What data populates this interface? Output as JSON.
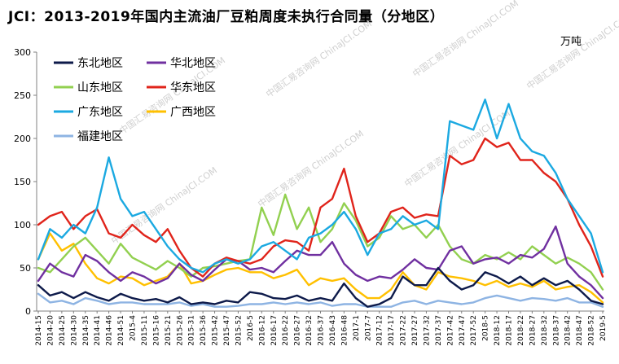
{
  "chart_data": {
    "type": "line",
    "title": "JCI：2013-2019年国内主流油厂豆粕周度未执行合同量（分地区）",
    "unit": "万吨",
    "ylim": [
      0,
      300
    ],
    "yticks": [
      0,
      50,
      100,
      150,
      200,
      250,
      300
    ],
    "grid": false,
    "legend_position": "top-left",
    "x_categories": [
      "2014-15",
      "2014-20",
      "2014-25",
      "2014-30",
      "2014-35",
      "2014-41",
      "2014-46",
      "2014-51",
      "2015-4",
      "2015-11",
      "2015-16",
      "2015-21",
      "2015-26",
      "2015-31",
      "2015-36",
      "2015-42",
      "2015-47",
      "2015-52",
      "2016-5",
      "2016-12",
      "2016-17",
      "2016-22",
      "2016-27",
      "2016-32",
      "2016-37",
      "2016-43",
      "2016-48",
      "2017-1",
      "2017-7",
      "2017-12",
      "2017-17",
      "2017-22",
      "2017-27",
      "2017-32",
      "2017-37",
      "2017-42",
      "2017-47",
      "2017-52",
      "2018-5",
      "2018-12",
      "2018-17",
      "2018-22",
      "2018-27",
      "2018-32",
      "2018-37",
      "2018-42",
      "2018-47",
      "2018-52",
      "2019-5"
    ],
    "series": [
      {
        "name": "东北地区",
        "color": "#0d1a4a",
        "values": [
          30,
          18,
          22,
          15,
          22,
          16,
          12,
          20,
          15,
          12,
          14,
          10,
          16,
          8,
          10,
          8,
          12,
          10,
          22,
          20,
          15,
          14,
          18,
          12,
          15,
          12,
          32,
          15,
          5,
          8,
          15,
          40,
          30,
          30,
          50,
          35,
          25,
          30,
          45,
          40,
          32,
          40,
          30,
          38,
          30,
          35,
          25,
          12,
          8
        ]
      },
      {
        "name": "华北地区",
        "color": "#7030a0",
        "values": [
          35,
          55,
          45,
          40,
          65,
          58,
          45,
          35,
          45,
          40,
          32,
          38,
          55,
          42,
          35,
          48,
          60,
          58,
          48,
          50,
          45,
          58,
          70,
          65,
          65,
          80,
          55,
          42,
          35,
          40,
          38,
          48,
          60,
          50,
          48,
          70,
          75,
          55,
          60,
          62,
          55,
          65,
          62,
          72,
          98,
          55,
          40,
          30,
          15
        ]
      },
      {
        "name": "山东地区",
        "color": "#92d050",
        "values": [
          50,
          45,
          60,
          75,
          85,
          70,
          55,
          78,
          62,
          55,
          48,
          58,
          50,
          40,
          50,
          52,
          55,
          58,
          60,
          120,
          88,
          135,
          95,
          120,
          80,
          95,
          125,
          105,
          75,
          85,
          110,
          95,
          100,
          85,
          100,
          75,
          60,
          55,
          65,
          60,
          68,
          60,
          75,
          65,
          55,
          62,
          55,
          45,
          25
        ]
      },
      {
        "name": "华东地区",
        "color": "#e0241b",
        "values": [
          100,
          110,
          115,
          95,
          110,
          118,
          90,
          85,
          100,
          88,
          80,
          95,
          70,
          50,
          40,
          55,
          62,
          58,
          55,
          60,
          75,
          82,
          80,
          70,
          120,
          130,
          165,
          110,
          80,
          90,
          115,
          120,
          108,
          112,
          110,
          180,
          170,
          175,
          200,
          190,
          195,
          175,
          175,
          160,
          150,
          130,
          100,
          75,
          40
        ]
      },
      {
        "name": "广东地区",
        "color": "#1ba9e1",
        "values": [
          60,
          95,
          85,
          100,
          90,
          120,
          178,
          130,
          110,
          115,
          95,
          75,
          60,
          50,
          45,
          55,
          60,
          55,
          60,
          75,
          80,
          70,
          60,
          85,
          90,
          100,
          115,
          95,
          65,
          90,
          95,
          110,
          100,
          105,
          95,
          220,
          215,
          210,
          245,
          200,
          240,
          200,
          185,
          180,
          160,
          130,
          110,
          90,
          45
        ]
      },
      {
        "name": "广西地区",
        "color": "#ffc000",
        "values": [
          60,
          90,
          70,
          78,
          55,
          38,
          32,
          40,
          38,
          30,
          35,
          40,
          55,
          32,
          35,
          42,
          48,
          50,
          45,
          45,
          38,
          42,
          48,
          30,
          38,
          35,
          38,
          25,
          15,
          15,
          25,
          45,
          30,
          25,
          45,
          40,
          38,
          35,
          30,
          35,
          28,
          32,
          28,
          35,
          25,
          28,
          30,
          22,
          10
        ]
      },
      {
        "name": "福建地区",
        "color": "#8eb4e3",
        "values": [
          20,
          10,
          12,
          8,
          15,
          12,
          8,
          10,
          10,
          8,
          8,
          8,
          10,
          6,
          8,
          5,
          5,
          6,
          8,
          8,
          10,
          8,
          10,
          8,
          10,
          6,
          8,
          8,
          5,
          5,
          5,
          10,
          12,
          8,
          12,
          10,
          8,
          10,
          15,
          18,
          15,
          12,
          15,
          14,
          12,
          15,
          10,
          10,
          5
        ]
      }
    ]
  },
  "watermark": {
    "text": "中国汇易咨询网 ChinaJCI.COM"
  }
}
